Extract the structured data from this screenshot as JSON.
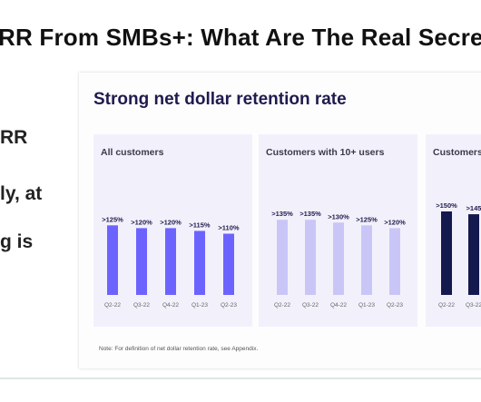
{
  "headline": "RR From SMBs+:  What Are The Real Secrets",
  "side_text": [
    "RR",
    "ly, at",
    "g is"
  ],
  "slide": {
    "title": "Strong net dollar retention rate",
    "footnote": "Note: For definition of net dollar retention rate, see Appendix."
  },
  "colors": {
    "panel_1_bar": "#6c63ff",
    "panel_2_bar": "#c9c6f7",
    "panel_3_bar": "#141a4e",
    "panel_bg": "#f2f1fb",
    "title": "#1f1b4d"
  },
  "chart_data": [
    {
      "type": "bar",
      "title": "All customers",
      "categories": [
        "Q2-22",
        "Q3-22",
        "Q4-22",
        "Q1-23",
        "Q2-23"
      ],
      "values": [
        125,
        120,
        120,
        115,
        110
      ],
      "labels": [
        ">125%",
        ">120%",
        ">120%",
        ">115%",
        ">110%"
      ],
      "ylim": [
        0,
        150
      ],
      "grid": false
    },
    {
      "type": "bar",
      "title": "Customers with 10+ users",
      "categories": [
        "Q2-22",
        "Q3-22",
        "Q4-22",
        "Q1-23",
        "Q2-23"
      ],
      "values": [
        135,
        135,
        130,
        125,
        120
      ],
      "labels": [
        ">135%",
        ">135%",
        ">130%",
        ">125%",
        ">120%"
      ],
      "ylim": [
        0,
        150
      ],
      "grid": false
    },
    {
      "type": "bar",
      "title": "Customers",
      "categories": [
        "Q2-22",
        "Q3-22"
      ],
      "values": [
        150,
        145
      ],
      "labels": [
        ">150%",
        ">145"
      ],
      "ylim": [
        0,
        150
      ],
      "grid": false
    }
  ]
}
